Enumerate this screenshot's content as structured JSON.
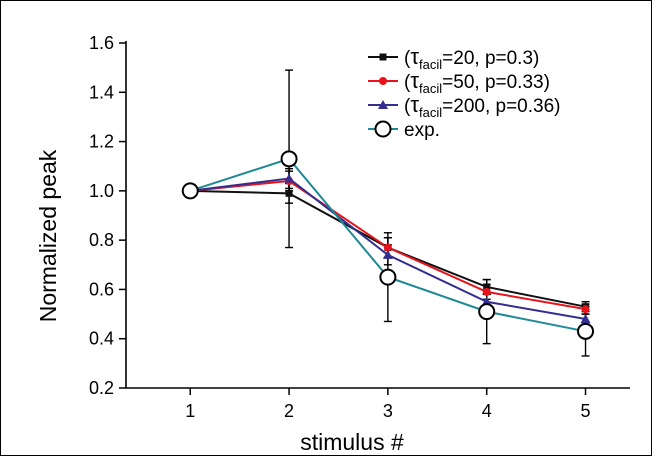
{
  "chart_data": {
    "type": "line",
    "xlabel": "stimulus #",
    "ylabel": "Normalized peak",
    "xlim": [
      0.35,
      5.45
    ],
    "ylim": [
      0.2,
      1.6
    ],
    "x_ticks": [
      1,
      2,
      3,
      4,
      5
    ],
    "y_ticks": [
      "0.2",
      "0.4",
      "0.6",
      "0.8",
      "1.0",
      "1.2",
      "1.4",
      "1.6"
    ],
    "x": [
      1,
      2,
      3,
      4,
      5
    ],
    "grid": false,
    "legend_position": "top-right",
    "series": [
      {
        "legend_prefix": "(",
        "legend_symbol": "τ",
        "legend_subscript": "facil",
        "legend_suffix": "=20, p=0.3)",
        "color": "#111111",
        "marker": "square",
        "values": [
          1.0,
          0.99,
          0.77,
          0.61,
          0.53
        ],
        "errors": [
          0,
          0.04,
          0.04,
          0.03,
          0.02
        ]
      },
      {
        "legend_prefix": "(",
        "legend_symbol": "τ",
        "legend_subscript": "facil",
        "legend_suffix": "=50, p=0.33)",
        "color": "#e8141c",
        "marker": "circle",
        "values": [
          1.0,
          1.04,
          0.77,
          0.59,
          0.52
        ],
        "errors": [
          0,
          0.04,
          0.04,
          0.03,
          0.02
        ]
      },
      {
        "legend_prefix": "(",
        "legend_symbol": "τ",
        "legend_subscript": "facil",
        "legend_suffix": "=200, p=0.36)",
        "color": "#332e8f",
        "marker": "triangle",
        "values": [
          1.0,
          1.05,
          0.74,
          0.55,
          0.48
        ],
        "errors": [
          0,
          0.04,
          0.04,
          0.03,
          0.02
        ]
      },
      {
        "legend_prefix": "",
        "legend_symbol": "",
        "legend_subscript": "",
        "legend_suffix": "exp.",
        "color": "#1f8a94",
        "marker": "open-circle",
        "values": [
          1.0,
          1.13,
          0.65,
          0.51,
          0.43
        ],
        "errors": [
          0,
          0.36,
          0.18,
          0.13,
          0.1
        ]
      }
    ]
  }
}
